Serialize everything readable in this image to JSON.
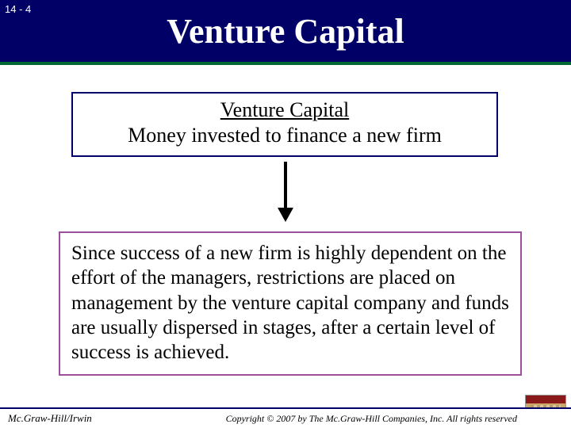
{
  "page_number": "14 - 4",
  "title": "Venture Capital",
  "definition": {
    "heading": "Venture Capital",
    "body": "Money invested to finance a new firm"
  },
  "body_text": "Since success of a new firm is highly dependent on the effort of the managers, restrictions are placed on management by the venture capital company and funds are usually dispersed in stages, after a certain level of success is achieved.",
  "footer": {
    "left": "Mc.Graw-Hill/Irwin",
    "right": "Copyright © 2007 by The Mc.Graw-Hill Companies, Inc. All rights reserved"
  },
  "colors": {
    "header_bg": "#000066",
    "header_border": "#006633",
    "def_border": "#000066",
    "body_border": "#9d4f9d",
    "text": "#000000",
    "title_text": "#ffffff",
    "slide_bg": "#ffffff"
  }
}
